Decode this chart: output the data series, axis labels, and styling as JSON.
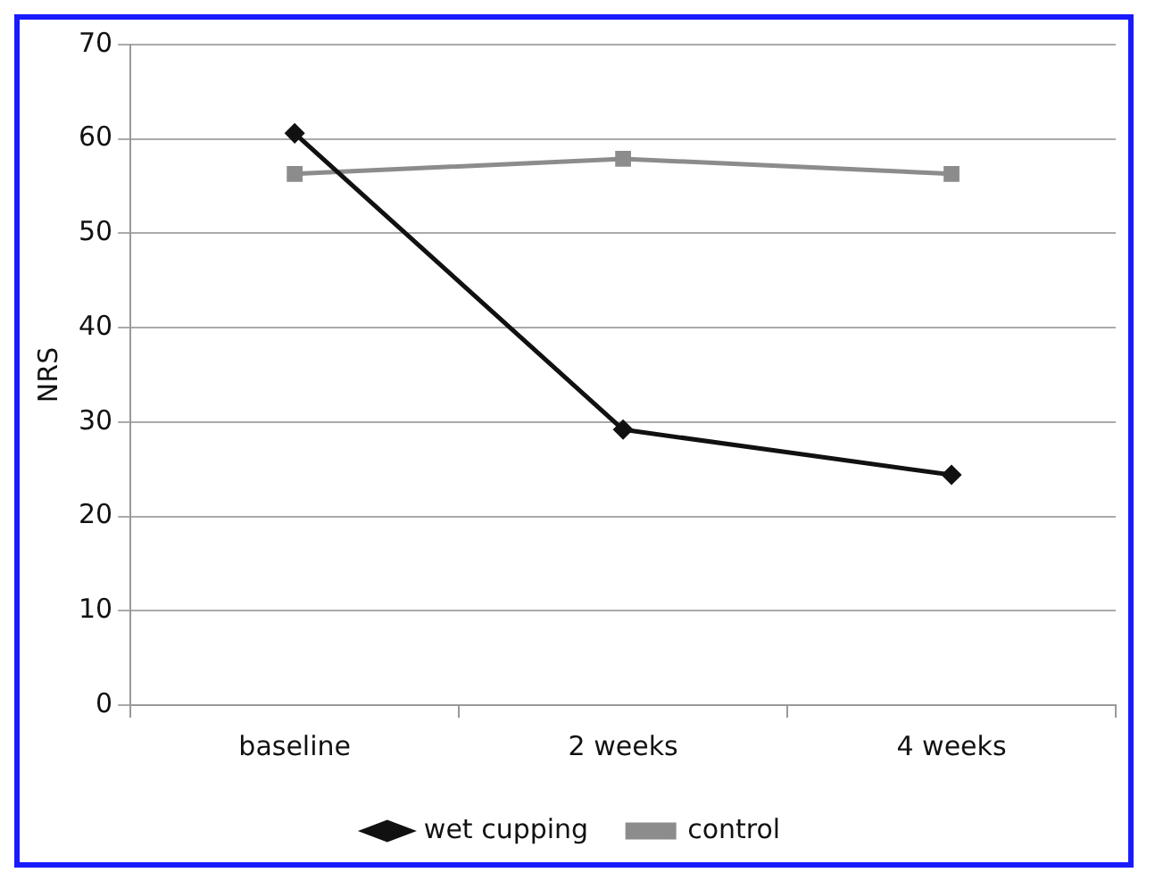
{
  "chart_data": {
    "type": "line",
    "ylabel": "NRS",
    "categories": [
      "baseline",
      "2 weeks",
      "4 weeks"
    ],
    "series": [
      {
        "name": "wet cupping",
        "color": "#111111",
        "marker": "diamond",
        "values": [
          60.6,
          29.2,
          24.4
        ]
      },
      {
        "name": "control",
        "color": "#8c8c8c",
        "marker": "square",
        "values": [
          56.3,
          57.9,
          56.3
        ]
      }
    ],
    "ylim": [
      0,
      70
    ],
    "yticks": [
      0,
      10,
      20,
      30,
      40,
      50,
      60,
      70
    ],
    "grid": "y",
    "legend": "bottom",
    "line_style": "solid"
  }
}
